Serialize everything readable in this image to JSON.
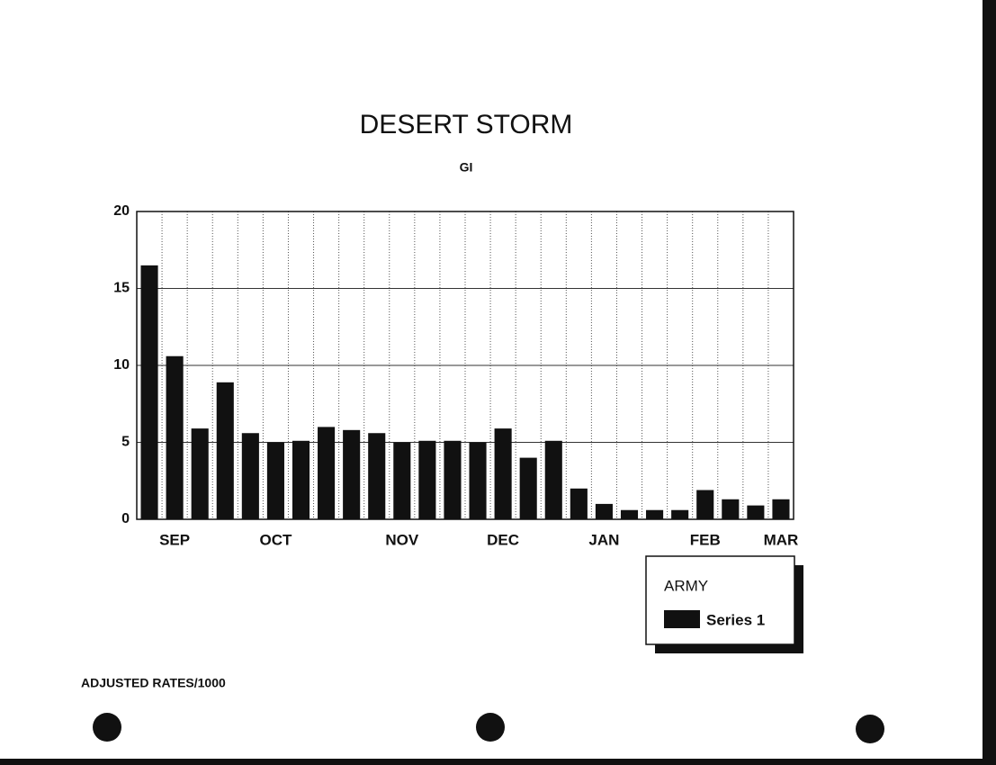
{
  "chart_data": {
    "type": "bar",
    "title": "DESERT STORM",
    "subtitle": "GI",
    "categories": [
      null,
      "SEP",
      null,
      null,
      null,
      "OCT",
      null,
      null,
      null,
      null,
      "NOV",
      null,
      null,
      null,
      "DEC",
      null,
      null,
      null,
      "JAN",
      null,
      null,
      null,
      "FEB",
      null,
      null,
      "MAR"
    ],
    "series": [
      {
        "name": "Series 1",
        "color": "#111111",
        "values": [
          16.5,
          10.6,
          5.9,
          8.9,
          5.6,
          5.0,
          5.1,
          6.0,
          5.8,
          5.6,
          5.0,
          5.1,
          5.1,
          5.0,
          5.9,
          4.0,
          5.1,
          2.0,
          1.0,
          0.6,
          0.6,
          0.6,
          1.9,
          1.3,
          0.9,
          1.3
        ]
      }
    ],
    "legend_title": "ARMY",
    "ylim": [
      0,
      20
    ],
    "yticks": [
      0,
      5,
      10,
      15,
      20
    ],
    "grid": true,
    "note": "ADJUSTED RATES/1000"
  }
}
